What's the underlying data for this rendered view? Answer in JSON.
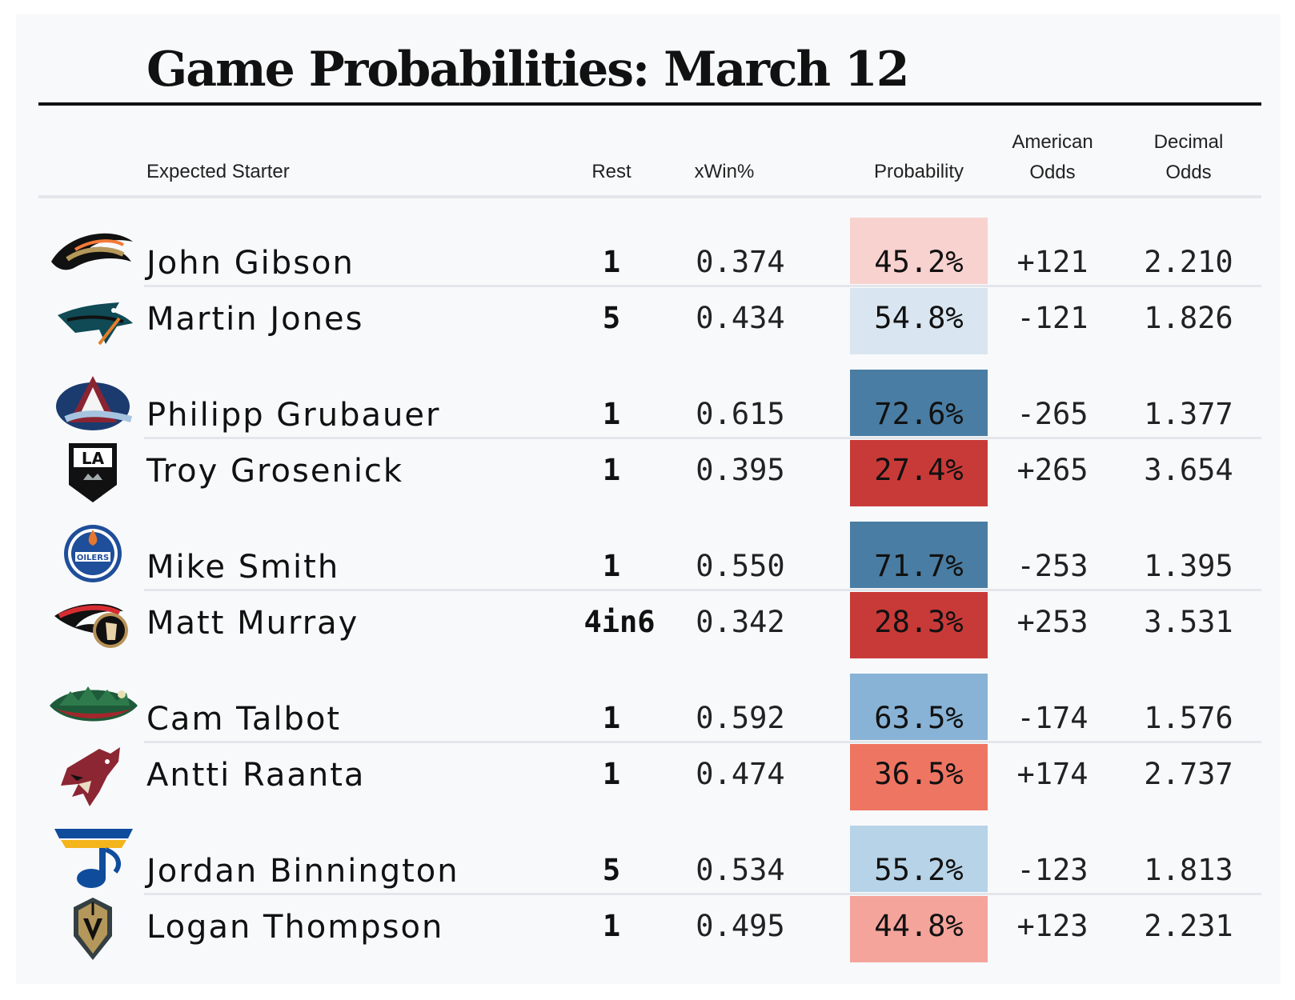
{
  "title": "Game Probabilities: March 12",
  "headers": {
    "starter": "Expected Starter",
    "rest": "Rest",
    "xwin": "xWin%",
    "probability": "Probability",
    "american_1": "American",
    "american_2": "Odds",
    "decimal_1": "Decimal",
    "decimal_2": "Odds"
  },
  "rows": [
    {
      "team_icon": "ducks-logo-icon",
      "starter": "John Gibson",
      "rest": "1",
      "xwin": "0.374",
      "probability": "45.2%",
      "american": "+121",
      "decimal": "2.210",
      "prob_color": "#f8d2cf"
    },
    {
      "team_icon": "sharks-logo-icon",
      "starter": "Martin Jones",
      "rest": "5",
      "xwin": "0.434",
      "probability": "54.8%",
      "american": "-121",
      "decimal": "1.826",
      "prob_color": "#d9e6f1"
    },
    {
      "team_icon": "avalanche-logo-icon",
      "starter": "Philipp Grubauer",
      "rest": "1",
      "xwin": "0.615",
      "probability": "72.6%",
      "american": "-265",
      "decimal": "1.377",
      "prob_color": "#4a7da3"
    },
    {
      "team_icon": "kings-logo-icon",
      "starter": "Troy Grosenick",
      "rest": "1",
      "xwin": "0.395",
      "probability": "27.4%",
      "american": "+265",
      "decimal": "3.654",
      "prob_color": "#c83a38"
    },
    {
      "team_icon": "oilers-logo-icon",
      "starter": "Mike Smith",
      "rest": "1",
      "xwin": "0.550",
      "probability": "71.7%",
      "american": "-253",
      "decimal": "1.395",
      "prob_color": "#4a7da3"
    },
    {
      "team_icon": "senators-logo-icon",
      "starter": "Matt Murray",
      "rest": "4in6",
      "xwin": "0.342",
      "probability": "28.3%",
      "american": "+253",
      "decimal": "3.531",
      "prob_color": "#c83a38"
    },
    {
      "team_icon": "wild-logo-icon",
      "starter": "Cam Talbot",
      "rest": "1",
      "xwin": "0.592",
      "probability": "63.5%",
      "american": "-174",
      "decimal": "1.576",
      "prob_color": "#88b3d6"
    },
    {
      "team_icon": "coyotes-logo-icon",
      "starter": "Antti Raanta",
      "rest": "1",
      "xwin": "0.474",
      "probability": "36.5%",
      "american": "+174",
      "decimal": "2.737",
      "prob_color": "#ef7563"
    },
    {
      "team_icon": "blues-logo-icon",
      "starter": "Jordan Binnington",
      "rest": "5",
      "xwin": "0.534",
      "probability": "55.2%",
      "american": "-123",
      "decimal": "1.813",
      "prob_color": "#b7d3e8"
    },
    {
      "team_icon": "golden-knights-logo-icon",
      "starter": "Logan Thompson",
      "rest": "1",
      "xwin": "0.495",
      "probability": "44.8%",
      "american": "+123",
      "decimal": "2.231",
      "prob_color": "#f4a49b"
    }
  ]
}
